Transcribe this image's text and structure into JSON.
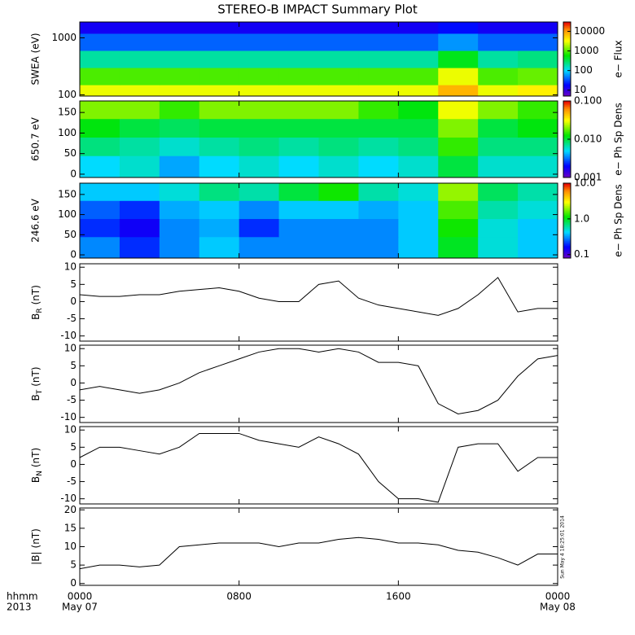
{
  "title": "STEREO-B IMPACT Summary Plot",
  "timestamp": "Sun May  4 18:25:01 2014",
  "x_axis": {
    "xlim": [
      0,
      24
    ],
    "xticks": [
      {
        "value": 0,
        "label": "0000"
      },
      {
        "value": 8,
        "label": "0800"
      },
      {
        "value": 16,
        "label": "1600"
      },
      {
        "value": 24,
        "label": "0000"
      }
    ],
    "date_labels": [
      {
        "value": 0,
        "label": "May 07"
      },
      {
        "value": 24,
        "label": "May 08"
      }
    ],
    "row_labels": [
      "hhmm",
      "2013"
    ]
  },
  "chart_data": [
    {
      "type": "heatmap",
      "ylabel": "SWEA (eV)",
      "log_y": true,
      "ylim": [
        95,
        1900
      ],
      "yticks": [
        100,
        1000
      ],
      "x": [
        0,
        2,
        4,
        6,
        8,
        10,
        12,
        14,
        16,
        18,
        20,
        22,
        24
      ],
      "y": [
        95,
        150,
        300,
        600,
        1200,
        1900
      ],
      "z": [
        [
          3000,
          3000,
          3000,
          3000,
          3000,
          3000,
          3000,
          3000,
          3000,
          8000,
          3000,
          4000
        ],
        [
          1000,
          1000,
          1000,
          1000,
          1000,
          1000,
          1000,
          1000,
          1000,
          3000,
          1000,
          1200
        ],
        [
          200,
          200,
          200,
          200,
          200,
          200,
          200,
          200,
          200,
          500,
          200,
          250
        ],
        [
          40,
          40,
          40,
          40,
          40,
          40,
          40,
          40,
          40,
          60,
          40,
          40
        ],
        [
          15,
          15,
          15,
          15,
          15,
          15,
          15,
          15,
          15,
          20,
          15,
          15
        ]
      ],
      "zlabel": "e− Flux",
      "zlim": [
        5,
        30000
      ],
      "zticks": [
        10,
        100,
        1000,
        10000
      ]
    },
    {
      "type": "heatmap",
      "ylabel": "650.7 eV",
      "log_y": false,
      "ylim": [
        -8,
        178
      ],
      "yticks": [
        0,
        50,
        100,
        150
      ],
      "x": [
        0,
        2,
        4,
        6,
        8,
        10,
        12,
        14,
        16,
        18,
        20,
        22,
        24
      ],
      "y": [
        -8,
        45,
        90,
        135,
        178
      ],
      "z": [
        [
          0.005,
          0.006,
          0.004,
          0.005,
          0.006,
          0.005,
          0.006,
          0.005,
          0.006,
          0.01,
          0.006,
          0.006
        ],
        [
          0.008,
          0.007,
          0.006,
          0.007,
          0.008,
          0.007,
          0.008,
          0.007,
          0.008,
          0.015,
          0.008,
          0.008
        ],
        [
          0.012,
          0.01,
          0.009,
          0.01,
          0.01,
          0.01,
          0.01,
          0.01,
          0.01,
          0.02,
          0.01,
          0.012
        ],
        [
          0.02,
          0.02,
          0.015,
          0.02,
          0.02,
          0.02,
          0.02,
          0.015,
          0.012,
          0.03,
          0.02,
          0.015
        ]
      ],
      "zlabel": "e− Ph Sp Dens",
      "zlim": [
        0.001,
        0.1
      ],
      "zticks": [
        {
          "value": 0.001,
          "label": "0.001"
        },
        {
          "value": 0.01,
          "label": "0.010"
        },
        {
          "value": 0.1,
          "label": "0.100"
        }
      ]
    },
    {
      "type": "heatmap",
      "ylabel": "246.6 eV",
      "log_y": false,
      "ylim": [
        -8,
        178
      ],
      "yticks": [
        0,
        50,
        100,
        150
      ],
      "x": [
        0,
        2,
        4,
        6,
        8,
        10,
        12,
        14,
        16,
        18,
        20,
        22,
        24
      ],
      "y": [
        -8,
        45,
        90,
        135,
        178
      ],
      "z": [
        [
          0.3,
          0.2,
          0.3,
          0.4,
          0.3,
          0.3,
          0.3,
          0.3,
          0.4,
          1,
          0.5,
          0.4
        ],
        [
          0.2,
          0.15,
          0.3,
          0.35,
          0.2,
          0.3,
          0.3,
          0.3,
          0.4,
          1.2,
          0.5,
          0.4
        ],
        [
          0.25,
          0.2,
          0.35,
          0.4,
          0.3,
          0.4,
          0.4,
          0.35,
          0.4,
          1.5,
          0.6,
          0.5
        ],
        [
          0.4,
          0.4,
          0.5,
          0.7,
          0.6,
          0.9,
          1.2,
          0.6,
          0.5,
          2,
          0.8,
          0.6
        ]
      ],
      "zlabel": "e− Ph Sp Dens",
      "zlim": [
        0.08,
        10
      ],
      "zticks": [
        {
          "value": 0.1,
          "label": "0.1"
        },
        {
          "value": 1,
          "label": "1.0"
        },
        {
          "value": 10,
          "label": "10.0"
        }
      ]
    },
    {
      "type": "line",
      "ylabel": {
        "text": "B",
        "sub": "R",
        "unit": "(nT)"
      },
      "ylim": [
        -11.5,
        11
      ],
      "yticks": [
        -10,
        -5,
        0,
        5,
        10
      ],
      "color": "#000000",
      "x": [
        0,
        1,
        2,
        3,
        4,
        5,
        6,
        7,
        8,
        9,
        10,
        11,
        12,
        13,
        14,
        15,
        16,
        17,
        18,
        19,
        20,
        21,
        22,
        23,
        24
      ],
      "values": [
        2,
        1.5,
        1.5,
        2,
        2,
        3,
        3.5,
        4,
        3,
        1,
        0,
        0,
        5,
        6,
        1,
        -1,
        -2,
        -3,
        -4,
        -2,
        2,
        7,
        -3,
        -2,
        -2
      ]
    },
    {
      "type": "line",
      "ylabel": {
        "text": "B",
        "sub": "T",
        "unit": "(nT)"
      },
      "ylim": [
        -11.5,
        11
      ],
      "yticks": [
        -10,
        -5,
        0,
        5,
        10
      ],
      "color": "#000000",
      "x": [
        0,
        1,
        2,
        3,
        4,
        5,
        6,
        7,
        8,
        9,
        10,
        11,
        12,
        13,
        14,
        15,
        16,
        17,
        18,
        19,
        20,
        21,
        22,
        23,
        24
      ],
      "values": [
        -2,
        -1,
        -2,
        -3,
        -2,
        0,
        3,
        5,
        7,
        9,
        10,
        10,
        9,
        10,
        9,
        6,
        6,
        5,
        -6,
        -9,
        -8,
        -5,
        2,
        7,
        8
      ]
    },
    {
      "type": "line",
      "ylabel": {
        "text": "B",
        "sub": "N",
        "unit": "(nT)"
      },
      "ylim": [
        -11.5,
        11
      ],
      "yticks": [
        -10,
        -5,
        0,
        5,
        10
      ],
      "color": "#000000",
      "x": [
        0,
        1,
        2,
        3,
        4,
        5,
        6,
        7,
        8,
        9,
        10,
        11,
        12,
        13,
        14,
        15,
        16,
        17,
        18,
        19,
        20,
        21,
        22,
        23,
        24
      ],
      "values": [
        2,
        5,
        5,
        4,
        3,
        5,
        9,
        9,
        9,
        7,
        6,
        5,
        8,
        6,
        3,
        -5,
        -10,
        -10,
        -11,
        5,
        6,
        6,
        -2,
        2,
        2
      ]
    },
    {
      "type": "line",
      "ylabel": {
        "text": "|B|",
        "unit": "(nT)"
      },
      "ylim": [
        -0.5,
        20.5
      ],
      "yticks": [
        0,
        5,
        10,
        15,
        20
      ],
      "color": "#000000",
      "x": [
        0,
        1,
        2,
        3,
        4,
        5,
        6,
        7,
        8,
        9,
        10,
        11,
        12,
        13,
        14,
        15,
        16,
        17,
        18,
        19,
        20,
        21,
        22,
        23,
        24
      ],
      "values": [
        4,
        5,
        5,
        4.5,
        5,
        10,
        10.5,
        11,
        11,
        11,
        10,
        11,
        11,
        12,
        12.5,
        12,
        11,
        11,
        10.5,
        9,
        8.5,
        7,
        5,
        8,
        8
      ]
    }
  ]
}
